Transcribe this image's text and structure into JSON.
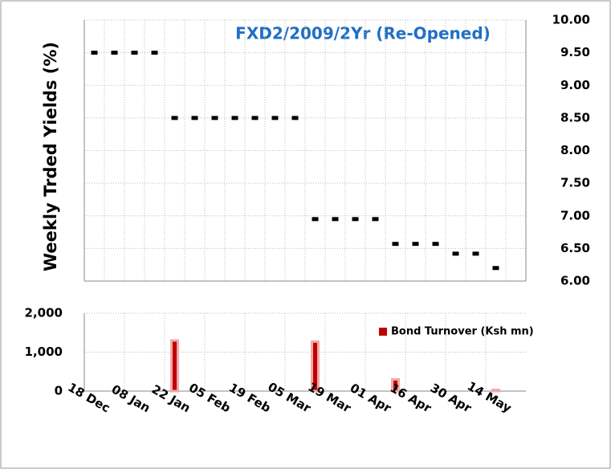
{
  "chart_data": [
    {
      "type": "dot",
      "title": "FXD2/2009/2Yr  (Re-Opened)",
      "ylabel": "Weekly Trded Yields (%)",
      "values": [
        9.5,
        9.5,
        9.5,
        9.5,
        8.5,
        8.5,
        8.5,
        8.5,
        8.5,
        8.5,
        8.5,
        6.95,
        6.95,
        6.95,
        6.95,
        6.57,
        6.57,
        6.57,
        6.42,
        6.42,
        6.2,
        null
      ],
      "color": "#000000",
      "axis": "y2",
      "y2lim": [
        6,
        10
      ],
      "y2ticks": [
        {
          "value": 6,
          "label": "6.00"
        },
        {
          "value": 6.5,
          "label": "6.50"
        },
        {
          "value": 7,
          "label": "7.00"
        },
        {
          "value": 7.5,
          "label": "7.50"
        },
        {
          "value": 8,
          "label": "8.00"
        },
        {
          "value": 8.5,
          "label": "8.50"
        },
        {
          "value": 9,
          "label": "9.00"
        },
        {
          "value": 9.5,
          "label": "9.50"
        },
        {
          "value": 10,
          "label": "10.00"
        }
      ],
      "grid": true
    },
    {
      "type": "bar",
      "categories": [
        "18 Dec",
        null,
        "08 Jan",
        null,
        "22 Jan",
        null,
        "05 Feb",
        null,
        "19 Feb",
        null,
        "05 Mar",
        null,
        "19 Mar",
        null,
        "01 Apr",
        null,
        "16 Apr",
        null,
        "30 Apr",
        null,
        "14 May",
        null
      ],
      "series": [
        {
          "name": "Bond Turnover (Ksh mn)",
          "color": "#c00000",
          "values": [
            0,
            0,
            0,
            0,
            1300,
            0,
            0,
            0,
            0,
            0,
            0,
            1270,
            0,
            0,
            0,
            300,
            0,
            0,
            0,
            0,
            30,
            0
          ]
        }
      ],
      "ylim": [
        0,
        2000
      ],
      "yticks": [
        0,
        {
          "value": 1000,
          "label": "1,000"
        },
        {
          "value": 2000,
          "label": "2,000"
        }
      ],
      "legend": "upper right",
      "grid": true
    }
  ]
}
